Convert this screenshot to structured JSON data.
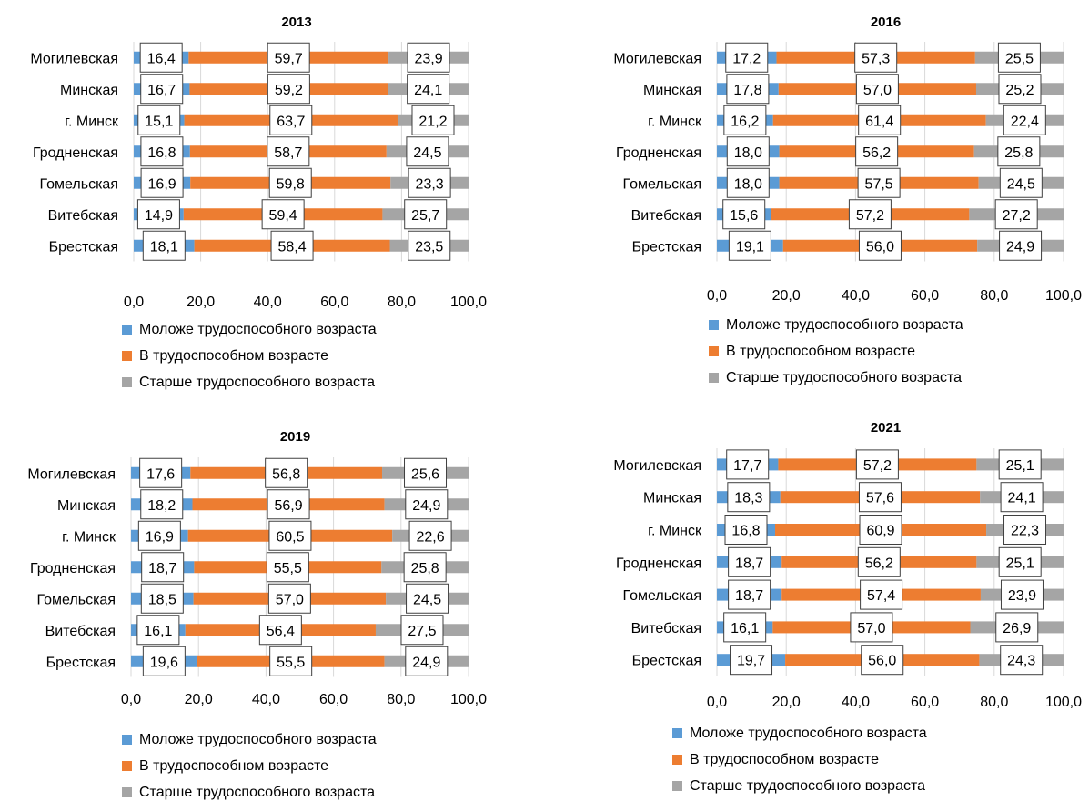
{
  "series_names": [
    "Моложе трудоспособного возраста",
    "В трудоспособном возрасте",
    "Старше трудоспособного возраста"
  ],
  "series_colors": [
    "#5b9bd5",
    "#ed7d31",
    "#a5a5a5"
  ],
  "chart_data": [
    {
      "type": "bar",
      "orientation": "horizontal",
      "stacked": true,
      "title": "2013",
      "categories": [
        "Могилевская",
        "Минская",
        "г. Минск",
        "Гродненская",
        "Гомельская",
        "Витебская",
        "Брестская"
      ],
      "series": [
        {
          "name": "Моложе трудоспособного возраста",
          "values": [
            16.4,
            16.7,
            15.1,
            16.8,
            16.9,
            14.9,
            18.1
          ]
        },
        {
          "name": "В трудоспособном возрасте",
          "values": [
            59.7,
            59.2,
            63.7,
            58.7,
            59.8,
            59.4,
            58.4
          ]
        },
        {
          "name": "Старше трудоспособного возраста",
          "values": [
            23.9,
            24.1,
            21.2,
            24.5,
            23.3,
            25.7,
            23.5
          ]
        }
      ],
      "labels": [
        [
          "16,4",
          "16,7",
          "15,1",
          "16,8",
          "16,9",
          "14,9",
          "18,1"
        ],
        [
          "59,7",
          "59,2",
          "63,7",
          "58,7",
          "59,8",
          "59,4",
          "58,4"
        ],
        [
          "23,9",
          "24,1",
          "21,2",
          "24,5",
          "23,3",
          "25,7",
          "23,5"
        ]
      ],
      "xlim": [
        0,
        100
      ],
      "xticks": [
        "0,0",
        "20,0",
        "40,0",
        "60,0",
        "80,0",
        "100,0"
      ],
      "grid": true,
      "legend": "bottom"
    },
    {
      "type": "bar",
      "orientation": "horizontal",
      "stacked": true,
      "title": "2016",
      "categories": [
        "Могилевская",
        "Минская",
        "г. Минск",
        "Гродненская",
        "Гомельская",
        "Витебская",
        "Брестская"
      ],
      "series": [
        {
          "name": "Моложе трудоспособного возраста",
          "values": [
            17.2,
            17.8,
            16.2,
            18.0,
            18.0,
            15.6,
            19.1
          ]
        },
        {
          "name": "В трудоспособном возрасте",
          "values": [
            57.3,
            57.0,
            61.4,
            56.2,
            57.5,
            57.2,
            56.0
          ]
        },
        {
          "name": "Старше трудоспособного возраста",
          "values": [
            25.5,
            25.2,
            22.4,
            25.8,
            24.5,
            27.2,
            24.9
          ]
        }
      ],
      "labels": [
        [
          "17,2",
          "17,8",
          "16,2",
          "18,0",
          "18,0",
          "15,6",
          "19,1"
        ],
        [
          "57,3",
          "57,0",
          "61,4",
          "56,2",
          "57,5",
          "57,2",
          "56,0"
        ],
        [
          "25,5",
          "25,2",
          "22,4",
          "25,8",
          "24,5",
          "27,2",
          "24,9"
        ]
      ],
      "xlim": [
        0,
        100
      ],
      "xticks": [
        "0,0",
        "20,0",
        "40,0",
        "60,0",
        "80,0",
        "100,0"
      ],
      "grid": true,
      "legend": "bottom"
    },
    {
      "type": "bar",
      "orientation": "horizontal",
      "stacked": true,
      "title": "2019",
      "categories": [
        "Могилевская",
        "Минская",
        "г. Минск",
        "Гродненская",
        "Гомельская",
        "Витебская",
        "Брестская"
      ],
      "series": [
        {
          "name": "Моложе трудоспособного возраста",
          "values": [
            17.6,
            18.2,
            16.9,
            18.7,
            18.5,
            16.1,
            19.6
          ]
        },
        {
          "name": "В трудоспособном возрасте",
          "values": [
            56.8,
            56.9,
            60.5,
            55.5,
            57.0,
            56.4,
            55.5
          ]
        },
        {
          "name": "Старше трудоспособного возраста",
          "values": [
            25.6,
            24.9,
            22.6,
            25.8,
            24.5,
            27.5,
            24.9
          ]
        }
      ],
      "labels": [
        [
          "17,6",
          "18,2",
          "16,9",
          "18,7",
          "18,5",
          "16,1",
          "19,6"
        ],
        [
          "56,8",
          "56,9",
          "60,5",
          "55,5",
          "57,0",
          "56,4",
          "55,5"
        ],
        [
          "25,6",
          "24,9",
          "22,6",
          "25,8",
          "24,5",
          "27,5",
          "24,9"
        ]
      ],
      "xlim": [
        0,
        100
      ],
      "xticks": [
        "0,0",
        "20,0",
        "40,0",
        "60,0",
        "80,0",
        "100,0"
      ],
      "grid": true,
      "legend": "bottom"
    },
    {
      "type": "bar",
      "orientation": "horizontal",
      "stacked": true,
      "title": "2021",
      "categories": [
        "Могилевская",
        "Минская",
        "г. Минск",
        "Гродненская",
        "Гомельская",
        "Витебская",
        "Брестская"
      ],
      "series": [
        {
          "name": "Моложе трудоспособного возраста",
          "values": [
            17.7,
            18.3,
            16.8,
            18.7,
            18.7,
            16.1,
            19.7
          ]
        },
        {
          "name": "В трудоспособном возрасте",
          "values": [
            57.2,
            57.6,
            60.9,
            56.2,
            57.4,
            57.0,
            56.0
          ]
        },
        {
          "name": "Старше трудоспособного возраста",
          "values": [
            25.1,
            24.1,
            22.3,
            25.1,
            23.9,
            26.9,
            24.3
          ]
        }
      ],
      "labels": [
        [
          "17,7",
          "18,3",
          "16,8",
          "18,7",
          "18,7",
          "16,1",
          "19,7"
        ],
        [
          "57,2",
          "57,6",
          "60,9",
          "56,2",
          "57,4",
          "57,0",
          "56,0"
        ],
        [
          "25,1",
          "24,1",
          "22,3",
          "25,1",
          "23,9",
          "26,9",
          "24,3"
        ]
      ],
      "xlim": [
        0,
        100
      ],
      "xticks": [
        "0,0",
        "20,0",
        "40,0",
        "60,0",
        "80,0",
        "100,0"
      ],
      "grid": true,
      "legend": "bottom"
    }
  ]
}
